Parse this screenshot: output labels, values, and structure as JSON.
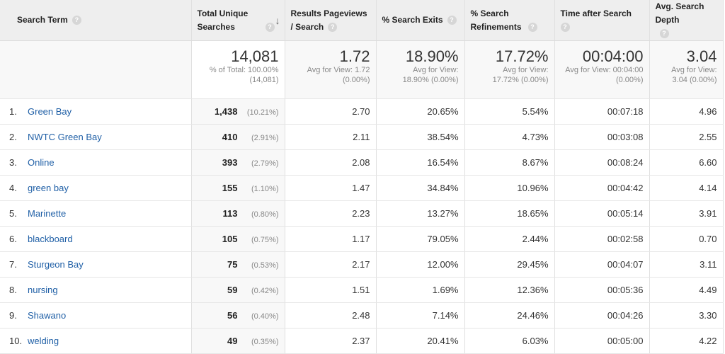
{
  "headers": [
    {
      "label": "Search Term",
      "help": "?"
    },
    {
      "label": "Total Unique Searches",
      "help": "?",
      "sort": "↓"
    },
    {
      "label": "Results Pageviews / Search",
      "help": "?"
    },
    {
      "label": "% Search Exits",
      "help": "?"
    },
    {
      "label": "% Search Refinements",
      "help": "?"
    },
    {
      "label": "Time after Search",
      "help": "?"
    },
    {
      "label": "Avg. Search Depth",
      "help": "?"
    }
  ],
  "summary": [
    {
      "value": "14,081",
      "sub1": "% of Total: 100.00%",
      "sub2": "(14,081)"
    },
    {
      "value": "1.72",
      "sub1": "Avg for View: 1.72",
      "sub2": "(0.00%)"
    },
    {
      "value": "18.90%",
      "sub1": "Avg for View:",
      "sub2": "18.90% (0.00%)"
    },
    {
      "value": "17.72%",
      "sub1": "Avg for View:",
      "sub2": "17.72% (0.00%)"
    },
    {
      "value": "00:04:00",
      "sub1": "Avg for View: 00:04:00",
      "sub2": "(0.00%)"
    },
    {
      "value": "3.04",
      "sub1": "Avg for View:",
      "sub2": "3.04 (0.00%)"
    }
  ],
  "rows": [
    {
      "idx": "1.",
      "term": "Green Bay",
      "searches": "1,438",
      "pct": "(10.21%)",
      "rpv": "2.70",
      "exits": "20.65%",
      "ref": "5.54%",
      "time": "00:07:18",
      "depth": "4.96"
    },
    {
      "idx": "2.",
      "term": "NWTC Green Bay",
      "searches": "410",
      "pct": "(2.91%)",
      "rpv": "2.11",
      "exits": "38.54%",
      "ref": "4.73%",
      "time": "00:03:08",
      "depth": "2.55"
    },
    {
      "idx": "3.",
      "term": "Online",
      "searches": "393",
      "pct": "(2.79%)",
      "rpv": "2.08",
      "exits": "16.54%",
      "ref": "8.67%",
      "time": "00:08:24",
      "depth": "6.60"
    },
    {
      "idx": "4.",
      "term": "green bay",
      "searches": "155",
      "pct": "(1.10%)",
      "rpv": "1.47",
      "exits": "34.84%",
      "ref": "10.96%",
      "time": "00:04:42",
      "depth": "4.14"
    },
    {
      "idx": "5.",
      "term": "Marinette",
      "searches": "113",
      "pct": "(0.80%)",
      "rpv": "2.23",
      "exits": "13.27%",
      "ref": "18.65%",
      "time": "00:05:14",
      "depth": "3.91"
    },
    {
      "idx": "6.",
      "term": "blackboard",
      "searches": "105",
      "pct": "(0.75%)",
      "rpv": "1.17",
      "exits": "79.05%",
      "ref": "2.44%",
      "time": "00:02:58",
      "depth": "0.70"
    },
    {
      "idx": "7.",
      "term": "Sturgeon Bay",
      "searches": "75",
      "pct": "(0.53%)",
      "rpv": "2.17",
      "exits": "12.00%",
      "ref": "29.45%",
      "time": "00:04:07",
      "depth": "3.11"
    },
    {
      "idx": "8.",
      "term": "nursing",
      "searches": "59",
      "pct": "(0.42%)",
      "rpv": "1.51",
      "exits": "1.69%",
      "ref": "12.36%",
      "time": "00:05:36",
      "depth": "4.49"
    },
    {
      "idx": "9.",
      "term": "Shawano",
      "searches": "56",
      "pct": "(0.40%)",
      "rpv": "2.48",
      "exits": "7.14%",
      "ref": "24.46%",
      "time": "00:04:26",
      "depth": "3.30"
    },
    {
      "idx": "10.",
      "term": "welding",
      "searches": "49",
      "pct": "(0.35%)",
      "rpv": "2.37",
      "exits": "20.41%",
      "ref": "6.03%",
      "time": "00:05:00",
      "depth": "4.22"
    }
  ]
}
